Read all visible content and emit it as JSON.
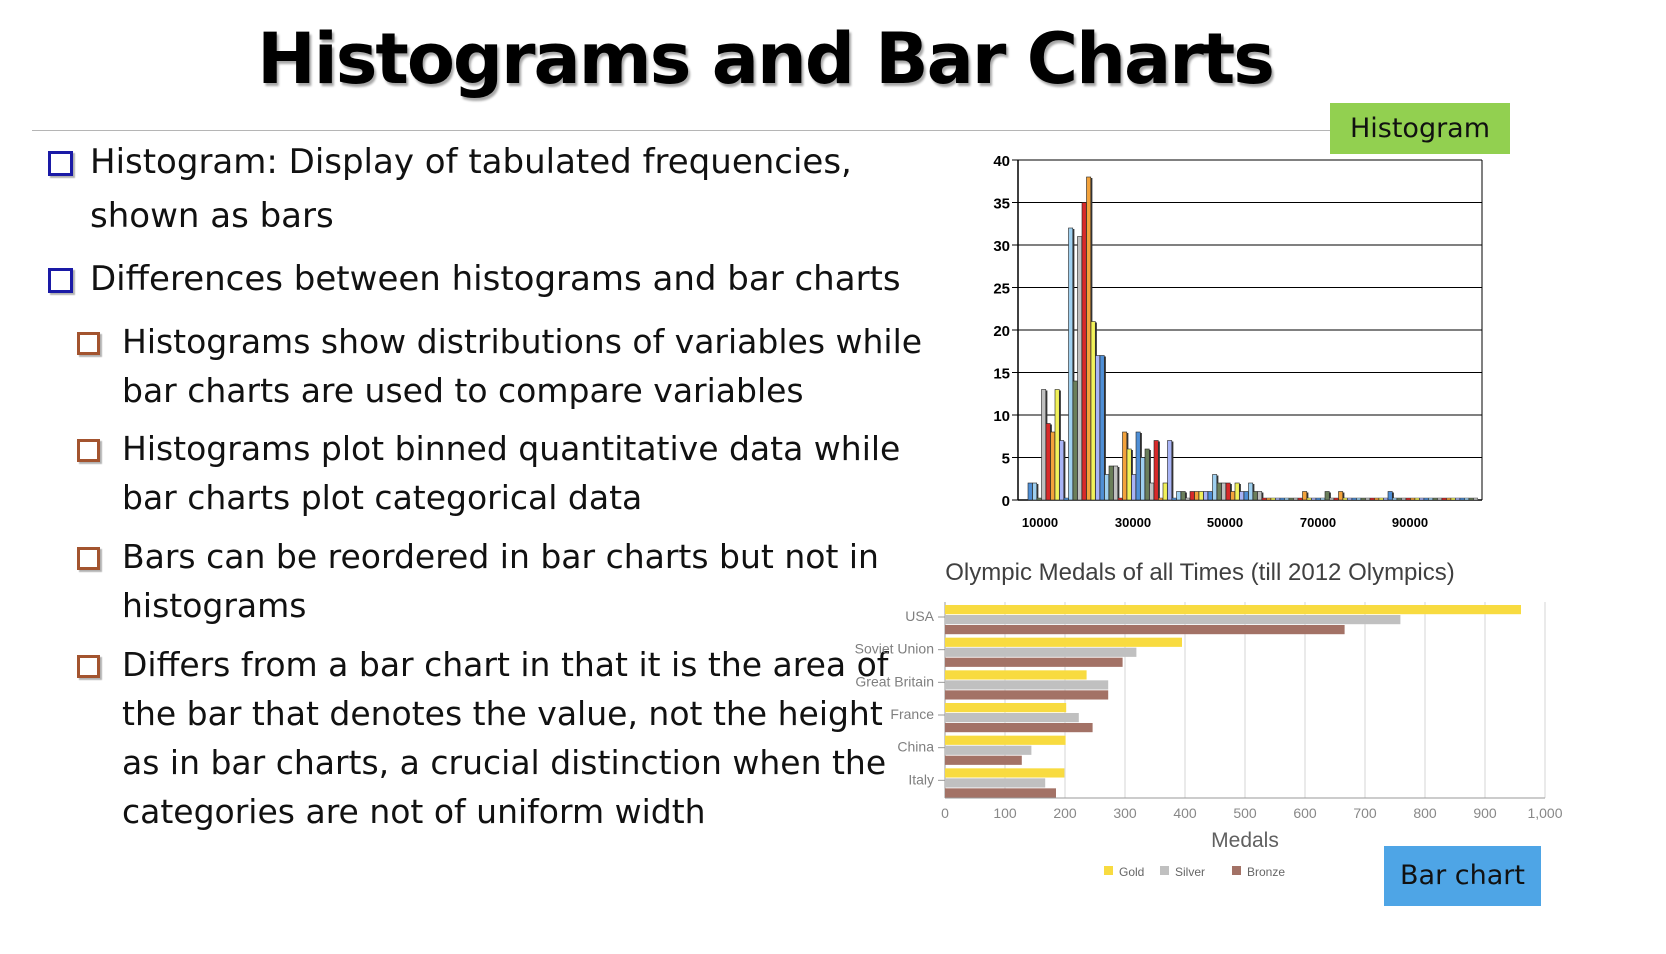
{
  "title": "Histograms and Bar Charts",
  "labels": {
    "histogram": "Histogram",
    "bar_chart": "Bar chart"
  },
  "bullets": {
    "b1_line1": "Histogram: Display of tabulated frequencies,",
    "b1_line2": "shown as bars",
    "b2": "Differences between histograms and bar charts",
    "s1_line1": "Histograms show distributions of variables while",
    "s1_line2": "bar charts are used to compare variables",
    "s2_line1": "Histograms plot binned quantitative data while",
    "s2_line2": "bar charts plot categorical data",
    "s3_line1": "Bars can be reordered in bar charts but not in",
    "s3_line2": "histograms",
    "s4_line1": "Differs from a bar chart in that it is the area of",
    "s4_line2": "the bar that denotes the value, not the height",
    "s4_line3": "as in bar charts, a crucial distinction when the",
    "s4_line4": "categories are not of uniform width"
  },
  "colors": {
    "gold": "#f8db40",
    "silver": "#c0c0c0",
    "bronze": "#a37266",
    "histogram_tag": "#92d050",
    "bar_chart_tag": "#4ea5e6"
  },
  "chart_data": [
    {
      "type": "bar",
      "ylim": [
        0,
        40
      ],
      "yticks": [
        "0",
        "5",
        "10",
        "15",
        "20",
        "25",
        "30",
        "35",
        "40"
      ],
      "xtick_labels": [
        "10000",
        "30000",
        "50000",
        "70000",
        "90000"
      ],
      "grid": true,
      "bar_palette": [
        "#4f8fd6",
        "#9fd0f0",
        "#6b7f5b",
        "#c0c0c0",
        "#d82a2a",
        "#f3a23b",
        "#f1f15a",
        "#a8b4f6"
      ],
      "bar_values": [
        2,
        2,
        0,
        13,
        9,
        8,
        13,
        7,
        0,
        32,
        14,
        31,
        35,
        38,
        21,
        17,
        17,
        3,
        4,
        4,
        0,
        8,
        6,
        3,
        8,
        5,
        6,
        2,
        7,
        0,
        2,
        7,
        0,
        1,
        1,
        0,
        1,
        1,
        1,
        1,
        1,
        3,
        2,
        2,
        2,
        1,
        2,
        1,
        1,
        2,
        1,
        1,
        0,
        0,
        0,
        0,
        0,
        0,
        0,
        0,
        0,
        1,
        0,
        0,
        0,
        0,
        1,
        0,
        0,
        1,
        0,
        0,
        0,
        0,
        0,
        0,
        0,
        0,
        0,
        0,
        1,
        0,
        0,
        0,
        0,
        0,
        0,
        0,
        0,
        0,
        0,
        0,
        0,
        0,
        0,
        0,
        0,
        0,
        0,
        0
      ]
    },
    {
      "type": "bar",
      "orientation": "horizontal",
      "title": "Olympic Medals of all Times (till 2012 Olympics)",
      "categories": [
        "USA",
        "Soviet Union",
        "Great Britain",
        "France",
        "China",
        "Italy"
      ],
      "series": [
        {
          "name": "Gold",
          "values": [
            960,
            395,
            236,
            202,
            201,
            199
          ]
        },
        {
          "name": "Silver",
          "values": [
            759,
            319,
            272,
            223,
            144,
            167
          ]
        },
        {
          "name": "Bronze",
          "values": [
            666,
            296,
            272,
            246,
            128,
            185
          ]
        }
      ],
      "xlabel": "Medals",
      "xlim": [
        0,
        1000
      ],
      "xticks": [
        "0",
        "100",
        "200",
        "300",
        "400",
        "500",
        "600",
        "700",
        "800",
        "900",
        "1,000"
      ],
      "legend": "bottom"
    }
  ]
}
